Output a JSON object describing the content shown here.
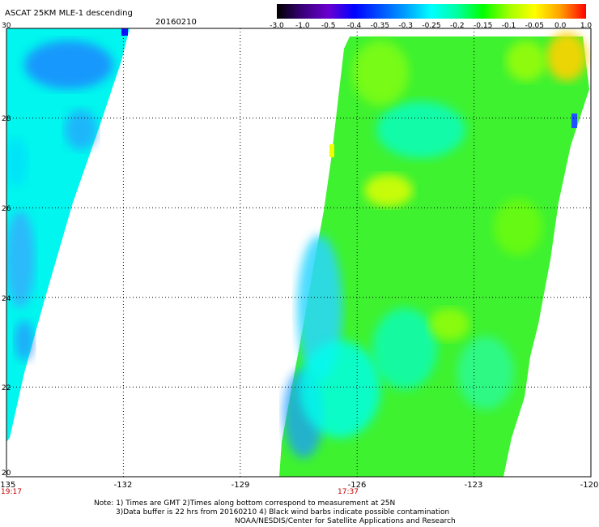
{
  "header": {
    "title": "ASCAT 25KM MLE-1 descending",
    "date": "20160210"
  },
  "colorbar": {
    "labels": [
      "-3.0",
      "-1.0",
      "-0.5",
      "-0.4",
      "-0.35",
      "-0.3",
      "-0.25",
      "-0.2",
      "-0.15",
      "-0.1",
      "-0.05",
      "0.0",
      "1.0"
    ],
    "colors": [
      "#000000",
      "#3a007a",
      "#6a00d0",
      "#0000ff",
      "#0050ff",
      "#00a0ff",
      "#00ffff",
      "#00ffa0",
      "#00ff00",
      "#a0ff00",
      "#ffff00",
      "#ffa000",
      "#ff0000"
    ]
  },
  "map": {
    "lon_ticks": [
      "-135",
      "-132",
      "-129",
      "-126",
      "-123",
      "-120"
    ],
    "lat_ticks": [
      "30",
      "28",
      "26",
      "24",
      "22",
      "20"
    ],
    "times": [
      {
        "label": "19:17",
        "lon": -135
      },
      {
        "label": "17:37",
        "lon": -126
      }
    ],
    "lon_range": [
      -135,
      -120
    ],
    "lat_range": [
      20,
      30
    ],
    "swath_colors": {
      "blue": "#1e78ff",
      "cyan": "#00ffee",
      "aqua": "#00e6d2",
      "green": "#2ef020",
      "lime": "#8cff00",
      "yellow": "#f0ff00",
      "orange": "#ffb400"
    }
  },
  "notes": {
    "line1": "Note: 1) Times are GMT 2)Times along bottom correspond to measurement at 25N",
    "line2": "3)Data buffer is 22 hrs from 20160210 4) Black wind barbs indicate possible contamination",
    "line3": "NOAA/NESDIS/Center for Satellite Applications and Research"
  }
}
